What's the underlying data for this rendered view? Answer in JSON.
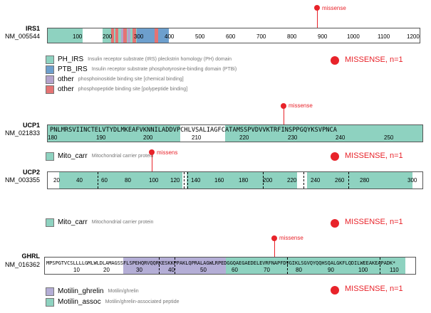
{
  "colors": {
    "missense": "#e8232a",
    "ph": "#8ed2c0",
    "ptb": "#6d9fcd",
    "chemical": "#b4a3cc",
    "phospho": "#e57373",
    "motilin": "#b4aed6"
  },
  "irs1": {
    "name": "IRS1",
    "accession": "NM_005544",
    "ticks": [
      "100",
      "200",
      "300",
      "400",
      "500",
      "600",
      "700",
      "800",
      "900",
      "1000",
      "1100",
      "1200"
    ],
    "mutation_label": "missense",
    "legend": [
      {
        "name": "PH_IRS",
        "desc": "Insulin receptor substrate (IRS) pleckstrin homology (PH) domain"
      },
      {
        "name": "PTB_IRS",
        "desc": "Insulin receptor substrate phosphotyrosine-binding domain (PTBi)"
      },
      {
        "name": "other",
        "desc": "phosphoinositide binding site [chemical binding]"
      },
      {
        "name": "other",
        "desc": "phosphopeptide binding site [polypeptide binding]"
      }
    ],
    "summary": "MISSENSE, n=1"
  },
  "ucp1": {
    "name": "UCP1",
    "accession": "NM_021833",
    "sequence": "PNLMRSVIINCTELVTYDLMKEAFVKNNILADDVPCHLVSALIAGFCATAMSSPVDVVKTRFINSPPGQYKSVPNCA",
    "ticks": [
      "180",
      "190",
      "200",
      "210",
      "220",
      "230",
      "240",
      "250"
    ],
    "mutation_label": "missense",
    "legend": [
      {
        "name": "Mito_carr",
        "desc": "Mitochondrial carrier protein"
      }
    ],
    "summary": "MISSENSE, n=1"
  },
  "ucp2": {
    "name": "UCP2",
    "accession": "NM_003355",
    "ticks": [
      "20",
      "40",
      "60",
      "80",
      "100",
      "120",
      "140",
      "160",
      "180",
      "200",
      "220",
      "240",
      "260",
      "280",
      "300"
    ],
    "mutation_label": "missens",
    "legend": [
      {
        "name": "Mito_carr",
        "desc": "Mitochondrial carrier protein"
      }
    ],
    "summary": "MISSENSE, n=1"
  },
  "ghrl": {
    "name": "GHRL",
    "accession": "NM_016362",
    "sequence": "MPSPGTVCSLLLLGMLWLDLAMAGSSFLSPEHQRVQQRKESKKPPAKLQPRALAGWLRPEDGGQAEGAEDELEVRFNAPFDVGIKLSGVQYQQHSQALGKFLQDILWEEAKEAPADK*",
    "ticks": [
      "10",
      "20",
      "30",
      "40",
      "50",
      "60",
      "70",
      "80",
      "90",
      "100",
      "110"
    ],
    "mutation_label": "missense",
    "legend": [
      {
        "name": "Motilin_ghrelin",
        "desc": "Motilin/ghrelin"
      },
      {
        "name": "Motilin_assoc",
        "desc": "Motilin/ghrelin-associated peptide"
      }
    ],
    "summary": "MISSENSE, n=1"
  }
}
